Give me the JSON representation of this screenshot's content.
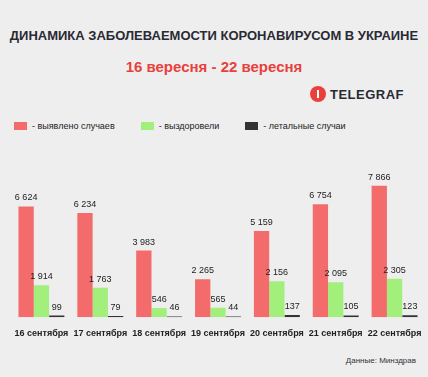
{
  "chart_data": {
    "type": "bar",
    "title": "ДИНАМИКА ЗАБОЛЕВАЕМОСТИ КОРОНАВИРУСОМ В УКРАИНЕ",
    "subtitle": "16 вересня - 22 вересня",
    "annotations": [
      "TELEGRAF",
      "Данные: Минздрав"
    ],
    "categories": [
      "16 сентября",
      "17 сентября",
      "18 сентября",
      "19 сентября",
      "20 сентября",
      "21 сентября",
      "22 сентября"
    ],
    "series": [
      {
        "name": "- выявлено случаев",
        "color": "#f46b6b",
        "values": [
          6624,
          6234,
          3983,
          2265,
          5159,
          6754,
          7866
        ],
        "value_labels": [
          "6 624",
          "6 234",
          "3 983",
          "2 265",
          "5 159",
          "6 754",
          "7 866"
        ]
      },
      {
        "name": "- выздоровели",
        "color": "#a3ef7c",
        "values": [
          1914,
          1763,
          546,
          565,
          2156,
          2095,
          2305
        ],
        "value_labels": [
          "1 914",
          "1 763",
          "546",
          "565",
          "2 156",
          "2 095",
          "2 305"
        ]
      },
      {
        "name": "- летальные случаи",
        "color": "#333333",
        "values": [
          99,
          79,
          46,
          44,
          137,
          105,
          123
        ],
        "value_labels": [
          "99",
          "79",
          "46",
          "44",
          "137",
          "105",
          "123"
        ]
      }
    ],
    "ylim": [
      0,
      10000
    ],
    "grid": false,
    "legend": "top-left",
    "data_labels": true,
    "tick_labels": "x"
  }
}
